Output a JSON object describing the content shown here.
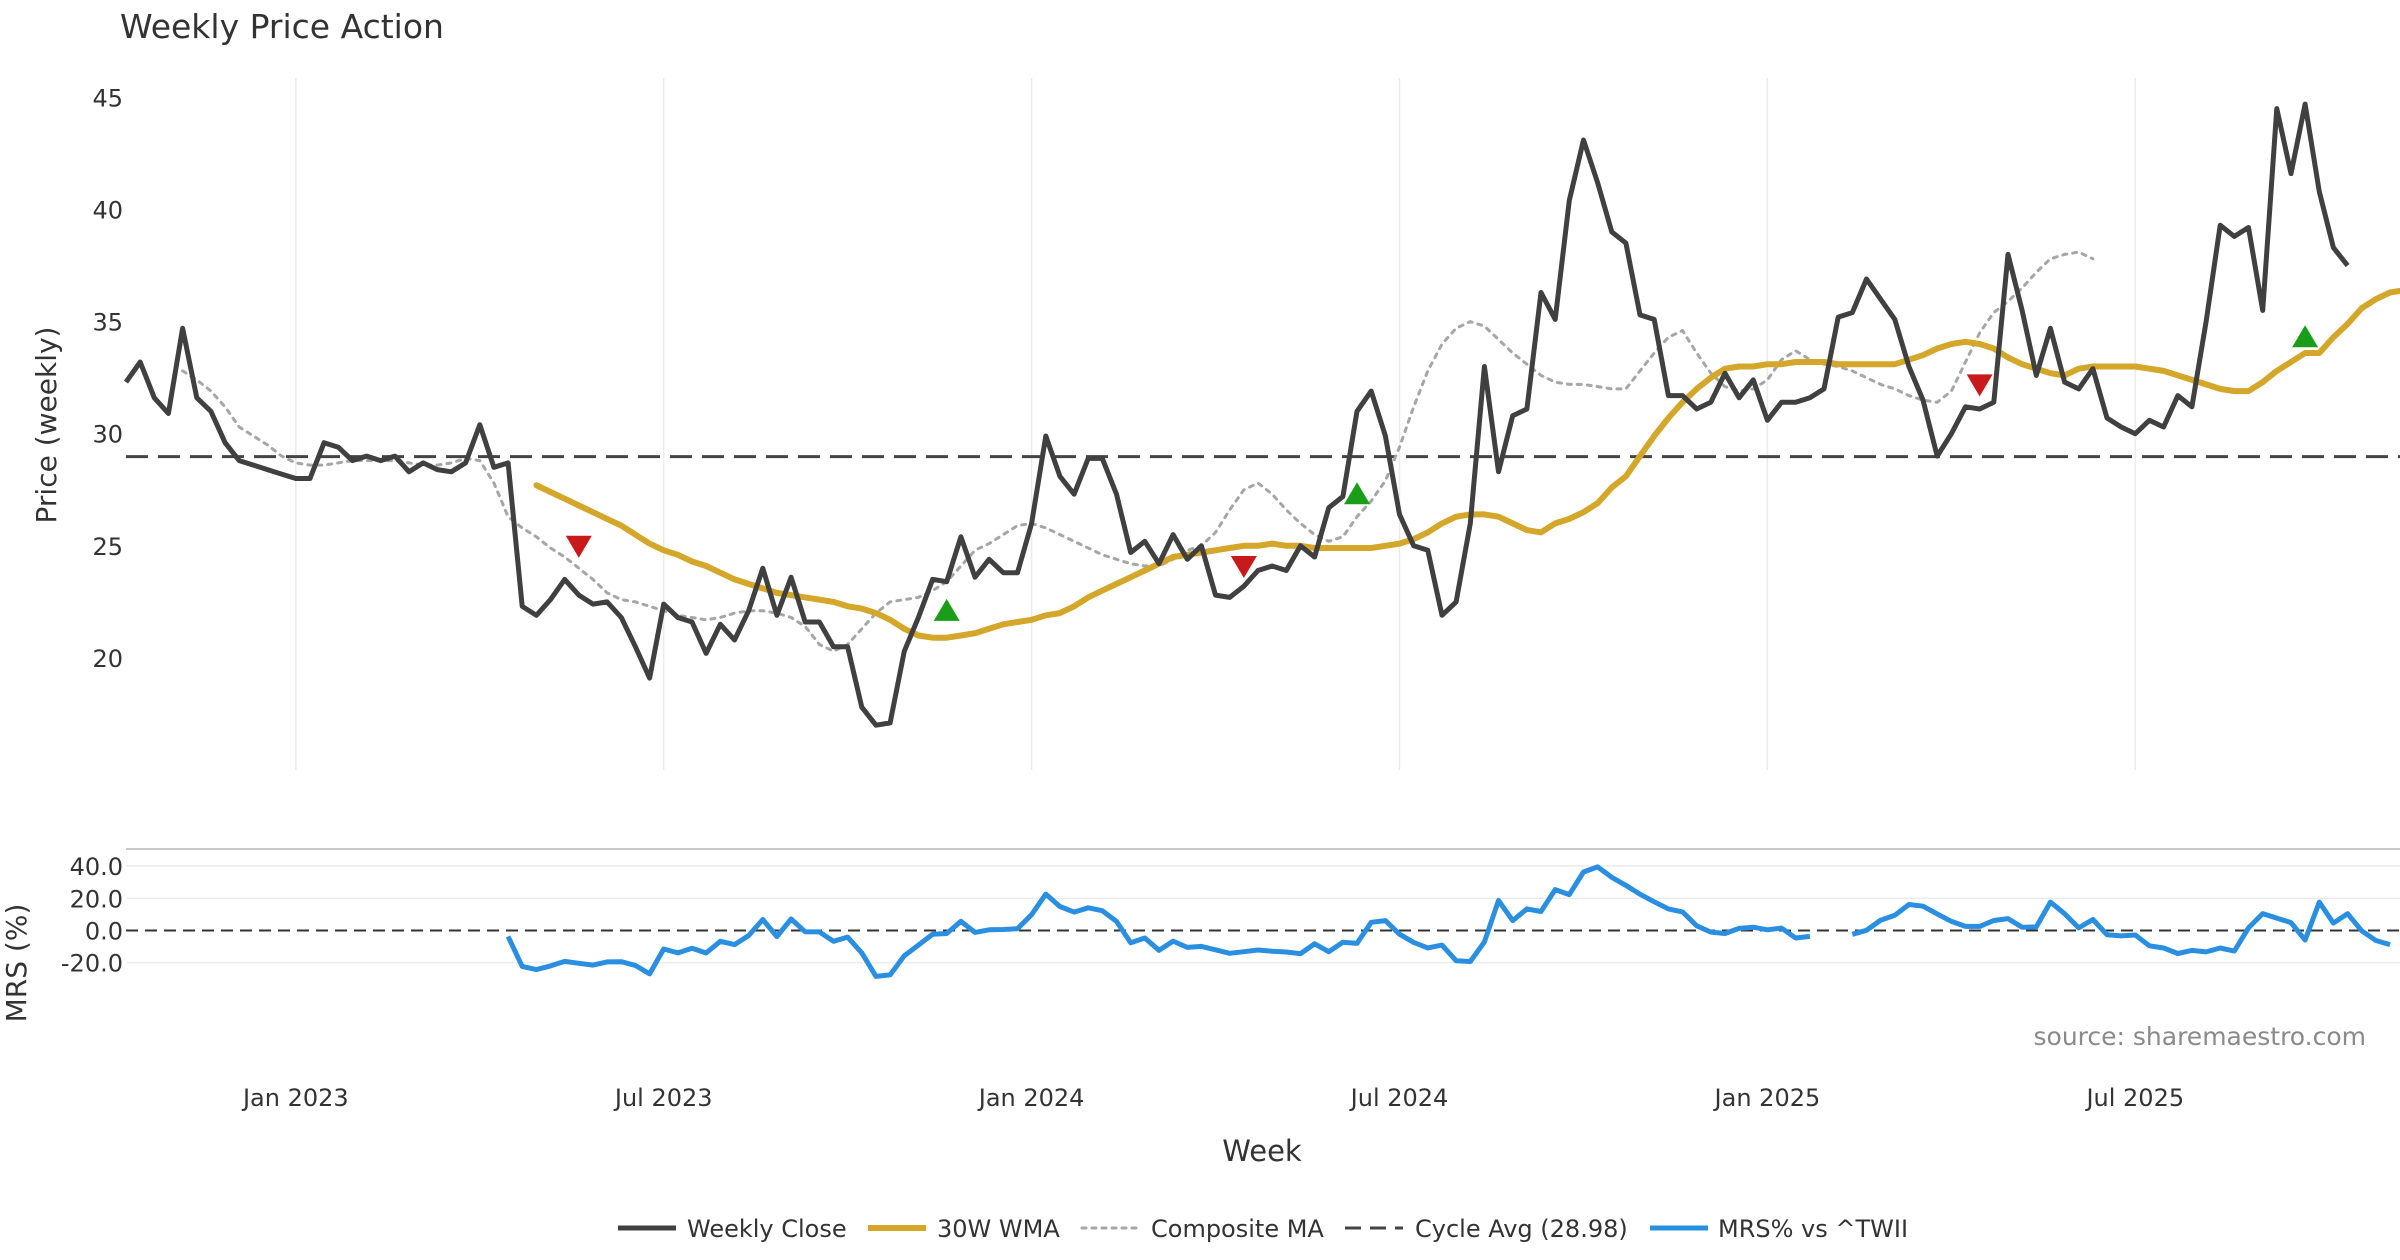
{
  "chart_data": {
    "type": "line",
    "title": "Weekly Price Action",
    "source": "source: sharemaestro.com",
    "x_axis": {
      "label": "Week",
      "ticks": [
        "Jan 2023",
        "Jul 2023",
        "Jan 2024",
        "Jul 2024",
        "Jan 2025",
        "Jul 2025"
      ]
    },
    "price_panel": {
      "ylabel": "Price (weekly)",
      "ylim": [
        15,
        46
      ],
      "yticks": [
        20,
        25,
        30,
        35,
        40,
        45
      ],
      "cycle_avg": 28.98,
      "series": [
        {
          "name": "Weekly Close",
          "color": "#404040",
          "start_week": 0,
          "values": [
            32.3,
            33.2,
            31.6,
            30.9,
            34.7,
            31.6,
            31.0,
            29.6,
            28.8,
            28.6,
            28.4,
            28.2,
            28.0,
            28.0,
            29.6,
            29.4,
            28.8,
            29.0,
            28.8,
            29.0,
            28.3,
            28.7,
            28.4,
            28.3,
            28.7,
            30.4,
            28.5,
            28.7,
            22.3,
            21.9,
            22.6,
            23.5,
            22.8,
            22.4,
            22.5,
            21.8,
            20.5,
            19.1,
            22.4,
            21.8,
            21.6,
            20.2,
            21.5,
            20.8,
            22.1,
            24.0,
            21.9,
            23.6,
            21.6,
            21.6,
            20.5,
            20.5,
            17.8,
            17.0,
            17.1,
            20.3,
            21.8,
            23.5,
            23.4,
            25.4,
            23.6,
            24.4,
            23.8,
            23.8,
            26.0,
            29.9,
            28.1,
            27.3,
            28.9,
            28.9,
            27.3,
            24.7,
            25.2,
            24.2,
            25.5,
            24.4,
            25.0,
            22.8,
            22.7,
            23.2,
            23.9,
            24.1,
            23.9,
            25.0,
            24.5,
            26.7,
            27.2,
            31.0,
            31.9,
            29.9,
            26.4,
            25.0,
            24.8,
            21.9,
            22.5,
            26.0,
            33.0,
            28.3,
            30.8,
            31.1,
            36.3,
            35.1,
            40.4,
            43.1,
            41.2,
            39.0,
            38.5,
            35.3,
            35.1,
            31.7,
            31.7,
            31.1,
            31.4,
            32.7,
            31.6,
            32.4,
            30.6,
            31.4,
            31.4,
            31.6,
            32.0,
            35.2,
            35.4,
            36.9,
            36.0,
            35.1,
            33.0,
            31.5,
            29.0,
            30.0,
            31.2,
            31.1,
            31.4,
            38.0,
            35.5,
            32.6,
            34.7,
            32.3,
            32.0,
            32.9,
            30.7,
            30.3,
            30.0,
            30.6,
            30.3,
            31.7,
            31.2,
            35.0,
            39.3,
            38.8,
            39.2,
            35.5,
            44.5,
            41.6,
            44.7,
            40.8,
            38.3,
            37.5
          ]
        },
        {
          "name": "30W WMA",
          "color": "#d4a62a",
          "start_week": 29,
          "values": [
            27.7,
            27.4,
            27.1,
            26.8,
            26.5,
            26.2,
            25.9,
            25.5,
            25.1,
            24.8,
            24.6,
            24.3,
            24.1,
            23.8,
            23.5,
            23.3,
            23.1,
            22.9,
            22.8,
            22.7,
            22.6,
            22.5,
            22.3,
            22.2,
            22.0,
            21.7,
            21.3,
            21.0,
            20.9,
            20.9,
            21.0,
            21.1,
            21.3,
            21.5,
            21.6,
            21.7,
            21.9,
            22.0,
            22.3,
            22.7,
            23.0,
            23.3,
            23.6,
            23.9,
            24.2,
            24.5,
            24.6,
            24.7,
            24.8,
            24.9,
            25.0,
            25.0,
            25.1,
            25.0,
            25.0,
            24.9,
            24.9,
            24.9,
            24.9,
            24.9,
            25.0,
            25.1,
            25.3,
            25.6,
            26.0,
            26.3,
            26.4,
            26.4,
            26.3,
            26.0,
            25.7,
            25.6,
            26.0,
            26.2,
            26.5,
            26.9,
            27.6,
            28.1,
            29.0,
            29.9,
            30.7,
            31.4,
            32.0,
            32.5,
            32.9,
            33.0,
            33.0,
            33.1,
            33.1,
            33.2,
            33.2,
            33.2,
            33.1,
            33.1,
            33.1,
            33.1,
            33.1,
            33.3,
            33.5,
            33.8,
            34.0,
            34.1,
            34.0,
            33.8,
            33.4,
            33.1,
            32.9,
            32.7,
            32.6,
            32.9,
            33.0,
            33.0,
            33.0,
            33.0,
            32.9,
            32.8,
            32.6,
            32.4,
            32.2,
            32.0,
            31.9,
            31.9,
            32.3,
            32.8,
            33.2,
            33.6,
            33.6,
            34.3,
            34.9,
            35.6,
            36.0,
            36.3,
            36.4
          ]
        },
        {
          "name": "Composite MA",
          "color": "#a6a6a6",
          "start_week": 4,
          "values": [
            32.8,
            32.4,
            31.9,
            31.2,
            30.3,
            29.9,
            29.5,
            29.0,
            28.7,
            28.6,
            28.6,
            28.7,
            28.8,
            28.8,
            28.8,
            28.8,
            28.7,
            28.6,
            28.6,
            28.7,
            28.9,
            28.8,
            27.8,
            26.3,
            25.8,
            25.4,
            24.9,
            24.5,
            24.0,
            23.5,
            22.9,
            22.6,
            22.5,
            22.3,
            22.1,
            21.9,
            21.8,
            21.7,
            21.8,
            22.0,
            22.1,
            22.1,
            22.0,
            21.8,
            21.4,
            20.6,
            20.3,
            20.6,
            21.3,
            22.0,
            22.5,
            22.6,
            22.7,
            23.0,
            23.4,
            24.1,
            24.8,
            25.1,
            25.5,
            25.9,
            26.0,
            25.8,
            25.5,
            25.2,
            24.9,
            24.6,
            24.4,
            24.2,
            24.1,
            24.1,
            24.4,
            24.8,
            25.0,
            25.6,
            26.6,
            27.5,
            27.8,
            27.3,
            26.6,
            26.0,
            25.5,
            25.2,
            25.4,
            26.3,
            27.0,
            27.9,
            29.4,
            31.2,
            32.8,
            34.0,
            34.7,
            35.0,
            34.8,
            34.2,
            33.6,
            33.1,
            32.6,
            32.3,
            32.2,
            32.2,
            32.1,
            32.0,
            32.0,
            32.8,
            33.6,
            34.3,
            34.6,
            33.6,
            32.7,
            32.1,
            31.9,
            32.0,
            32.4,
            33.3,
            33.7,
            33.3,
            33.1,
            33.0,
            32.8,
            32.5,
            32.2,
            32.0,
            31.7,
            31.5,
            31.4,
            31.9,
            33.2,
            34.5,
            35.4,
            35.9,
            36.5,
            37.2,
            37.8,
            38.0,
            38.1,
            37.8
          ]
        }
      ],
      "buy_signals": [
        {
          "week": 58,
          "value": 22.1
        },
        {
          "week": 87,
          "value": 27.3
        },
        {
          "week": 154,
          "value": 34.3
        }
      ],
      "sell_signals": [
        {
          "week": 32,
          "value": 25.0
        },
        {
          "week": 79,
          "value": 24.1
        },
        {
          "week": 131,
          "value": 32.2
        }
      ]
    },
    "mrs_panel": {
      "ylabel": "MRS (%)",
      "ylim": [
        -32,
        45
      ],
      "yticks": [
        "40.0",
        "20.0",
        "0.0",
        "-20.0"
      ],
      "ytick_values": [
        40,
        20,
        0,
        -20
      ],
      "series": {
        "name": "MRS% vs ^TWII",
        "color": "#2a8fe0",
        "start_week": 27,
        "values": [
          -3.7,
          -22.3,
          -24.3,
          -22.0,
          -19.2,
          -20.4,
          -21.5,
          -19.5,
          -19.4,
          -21.7,
          -27.0,
          -11.5,
          -13.9,
          -11.0,
          -14.0,
          -6.7,
          -8.8,
          -3.2,
          6.8,
          -3.8,
          7.1,
          -0.8,
          -0.9,
          -6.7,
          -4.1,
          -13.9,
          -28.5,
          -27.6,
          -15.7,
          -9.1,
          -2.4,
          -1.9,
          5.7,
          -1.2,
          0.4,
          0.6,
          1.1,
          9.8,
          22.6,
          14.9,
          11.4,
          14.1,
          12.3,
          5.6,
          -7.6,
          -4.7,
          -12.3,
          -6.6,
          -10.5,
          -9.9,
          -12.0,
          -14.2,
          -13.2,
          -12.1,
          -12.9,
          -13.4,
          -14.4,
          -8.3,
          -13.2,
          -7.3,
          -8.0,
          5.1,
          6.1,
          -2.3,
          -7.4,
          -10.8,
          -9.1,
          -18.8,
          -19.3,
          -7.1,
          18.6,
          6.1,
          13.4,
          11.8,
          25.4,
          22.3,
          36.3,
          39.5,
          33.0,
          28.0,
          22.5,
          17.8,
          13.4,
          11.5,
          2.9,
          -1.0,
          -1.9,
          1.3,
          2.0,
          0.4,
          1.5,
          -4.7,
          -3.7,
          null,
          null,
          -2.4,
          0.1,
          6.4,
          9.4,
          16.1,
          15.1,
          10.3,
          5.6,
          2.5,
          2.5,
          6.2,
          7.4,
          2.0,
          2.2,
          17.6,
          10.4,
          1.6,
          6.8,
          -2.6,
          -3.4,
          -2.8,
          -9.5,
          -10.9,
          -14.3,
          -12.4,
          -13.3,
          -10.9,
          -12.8,
          1.6,
          10.5,
          7.7,
          4.9,
          -6.0,
          17.6,
          4.6,
          10.4,
          -0.2,
          -6.2,
          -8.8
        ]
      }
    },
    "legend": [
      {
        "label": "Weekly Close",
        "style": "solid-dark"
      },
      {
        "label": "30W WMA",
        "style": "solid-gold"
      },
      {
        "label": "Composite MA",
        "style": "dotted-gray"
      },
      {
        "label": "Cycle Avg (28.98)",
        "style": "dashed-dark"
      },
      {
        "label": "MRS% vs ^TWII",
        "style": "solid-blue"
      }
    ]
  }
}
